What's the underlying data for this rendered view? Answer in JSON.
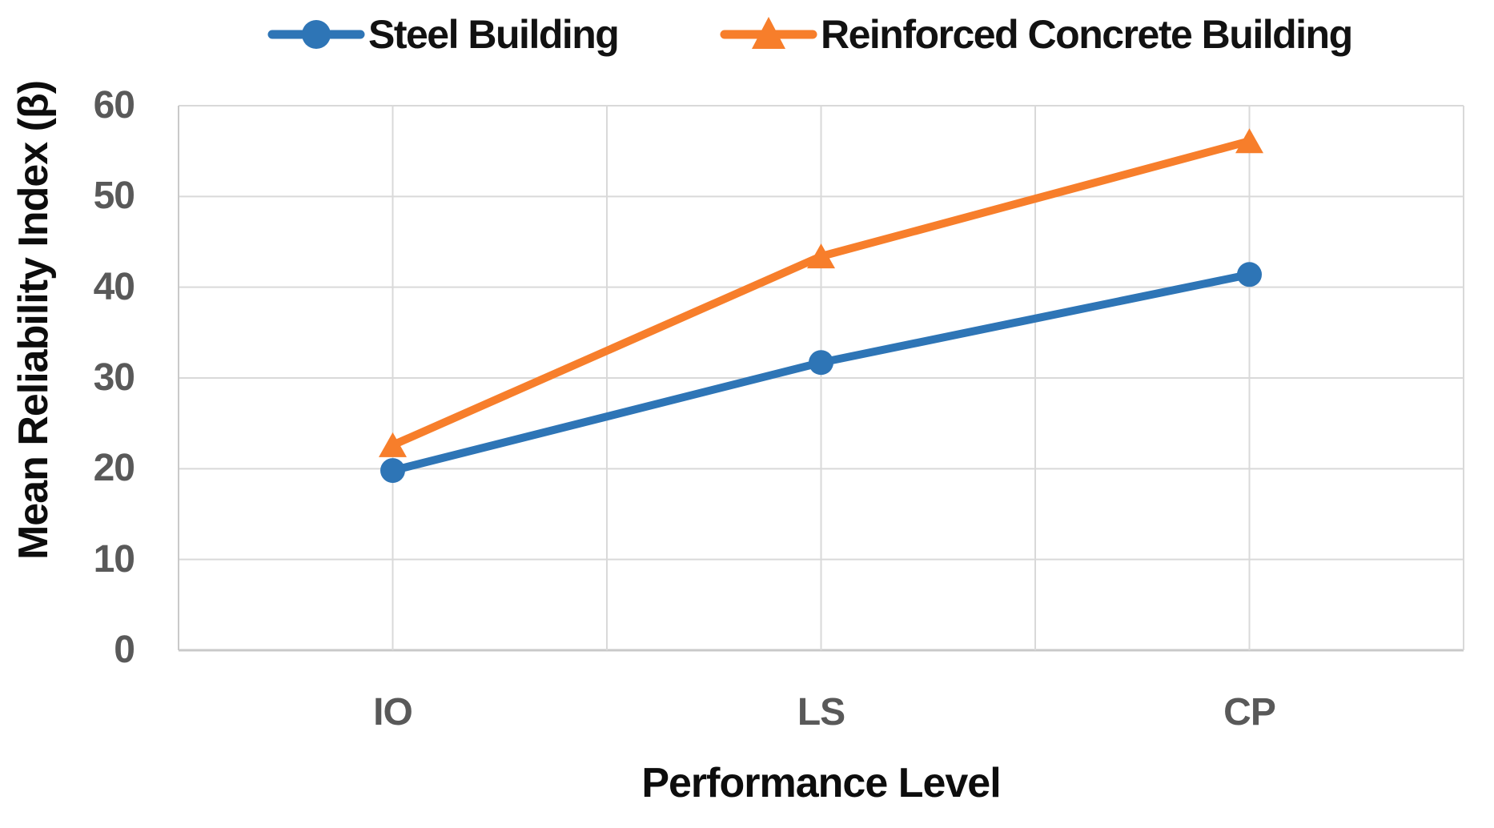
{
  "figure_type": "excel-style line chart",
  "colors": {
    "background": "#ffffff",
    "gridline": "#d9d9d9",
    "axis_line": "#c9c9c9",
    "tick_text": "#595959",
    "title_text": "#0d0d0d"
  },
  "chart_data": {
    "type": "line",
    "categories": [
      "IO",
      "LS",
      "CP"
    ],
    "series": [
      {
        "name": "Steel Building",
        "marker": "circle",
        "color": "#2E75B6",
        "values": [
          19.8,
          31.7,
          41.4
        ]
      },
      {
        "name": "Reinforced Concrete Building",
        "marker": "triangle",
        "color": "#F77E2B",
        "values": [
          22.6,
          43.4,
          56.1
        ]
      }
    ],
    "xlabel": "Performance Level",
    "ylabel": "Mean Reliability Index (β)",
    "ylim": [
      0,
      60
    ],
    "yticks": [
      0,
      10,
      20,
      30,
      40,
      50,
      60
    ],
    "x_gridline_divisions": 6,
    "grid": "light gray horizontal and vertical gridlines, full plot border",
    "legend_position": "top"
  }
}
